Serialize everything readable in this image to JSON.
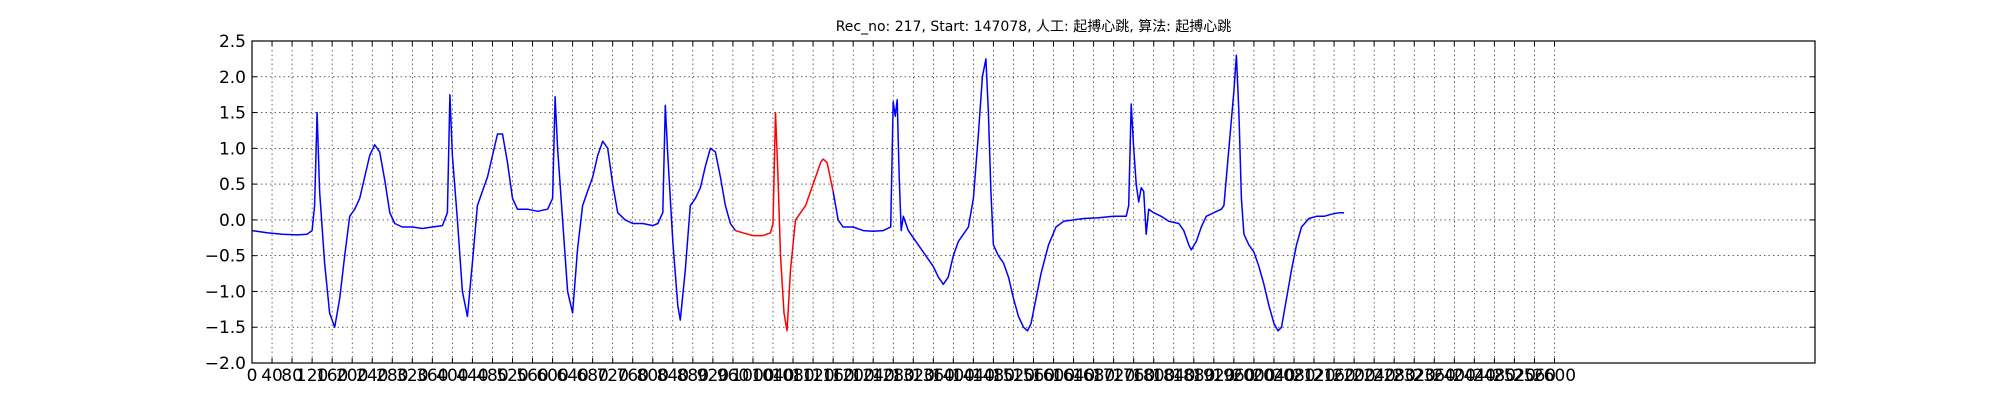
{
  "chart_data": {
    "type": "line",
    "title": "Rec_no: 217, Start: 147078, 人工: 起搏心跳, 算法: 起搏心跳",
    "xlabel": "",
    "ylabel": "",
    "xlim": [
      0,
      3120
    ],
    "ylim": [
      -2.0,
      2.5
    ],
    "grid": true,
    "yticks": [
      -2.0,
      -1.5,
      -1.0,
      -0.5,
      0.0,
      0.5,
      1.0,
      1.5,
      2.0,
      2.5
    ],
    "ytick_labels": [
      "−2.0",
      "−1.5",
      "−1.0",
      "−0.5",
      "0.0",
      "0.5",
      "1.0",
      "1.5",
      "2.0",
      "2.5"
    ],
    "xticks": [
      0,
      40,
      80,
      120,
      160,
      200,
      240,
      280,
      320,
      360,
      400,
      440,
      480,
      520,
      560,
      600,
      640,
      680,
      720,
      760,
      800,
      840,
      880,
      920,
      960,
      1000,
      1040,
      1080,
      1120,
      1160,
      1200,
      1240,
      1280,
      1320,
      1360,
      1400,
      1440,
      1480,
      1520,
      1560,
      1600,
      1640,
      1680,
      1720,
      1760,
      1800,
      1840,
      1880,
      1920,
      1960,
      2000,
      2040,
      2080,
      2120,
      2160,
      2200,
      2240,
      2280,
      2320,
      2360,
      2400,
      2440,
      2480,
      2520,
      2560,
      2600
    ],
    "xtick_labels": [
      "0",
      "40",
      "80",
      "120",
      "160",
      "200",
      "240",
      "280",
      "320",
      "360",
      "400",
      "440",
      "480",
      "520",
      "560",
      "600",
      "640",
      "680",
      "720",
      "760",
      "800",
      "840",
      "880",
      "920",
      "960",
      "1000",
      "1040",
      "1080",
      "1120",
      "1160",
      "1200",
      "1240",
      "1280",
      "1320",
      "1360",
      "1400",
      "1440",
      "1480",
      "1520",
      "1560",
      "1600",
      "1640",
      "1680",
      "1720",
      "1760",
      "1800",
      "1840",
      "1880",
      "1920",
      "1960",
      "2000",
      "2040",
      "2080",
      "2120",
      "2160",
      "2200",
      "2240",
      "2280",
      "2320",
      "2360",
      "2400",
      "2440",
      "2480",
      "2520",
      "2560",
      "2600"
    ],
    "series": [
      {
        "color": "#0000ff",
        "points": [
          [
            0,
            -0.15
          ],
          [
            30,
            -0.18
          ],
          [
            60,
            -0.2
          ],
          [
            90,
            -0.21
          ],
          [
            110,
            -0.2
          ],
          [
            120,
            -0.15
          ],
          [
            125,
            0.2
          ],
          [
            130,
            1.5
          ],
          [
            135,
            0.4
          ],
          [
            145,
            -0.6
          ],
          [
            155,
            -1.3
          ],
          [
            165,
            -1.5
          ],
          [
            175,
            -1.1
          ],
          [
            185,
            -0.5
          ],
          [
            195,
            0.05
          ],
          [
            205,
            0.15
          ],
          [
            215,
            0.3
          ],
          [
            225,
            0.6
          ],
          [
            235,
            0.9
          ],
          [
            245,
            1.05
          ],
          [
            255,
            0.95
          ],
          [
            265,
            0.55
          ],
          [
            275,
            0.1
          ],
          [
            285,
            -0.05
          ],
          [
            300,
            -0.1
          ],
          [
            320,
            -0.1
          ],
          [
            340,
            -0.12
          ],
          [
            360,
            -0.1
          ],
          [
            380,
            -0.08
          ],
          [
            390,
            0.1
          ],
          [
            395,
            1.75
          ],
          [
            400,
            0.9
          ],
          [
            410,
            0.0
          ],
          [
            420,
            -1.0
          ],
          [
            430,
            -1.35
          ],
          [
            440,
            -0.6
          ],
          [
            450,
            0.2
          ],
          [
            460,
            0.4
          ],
          [
            470,
            0.6
          ],
          [
            480,
            0.9
          ],
          [
            490,
            1.2
          ],
          [
            500,
            1.2
          ],
          [
            510,
            0.8
          ],
          [
            520,
            0.3
          ],
          [
            530,
            0.15
          ],
          [
            550,
            0.15
          ],
          [
            570,
            0.12
          ],
          [
            590,
            0.15
          ],
          [
            600,
            0.3
          ],
          [
            605,
            1.72
          ],
          [
            610,
            1.0
          ],
          [
            620,
            0.0
          ],
          [
            630,
            -1.0
          ],
          [
            640,
            -1.3
          ],
          [
            650,
            -0.4
          ],
          [
            660,
            0.2
          ],
          [
            670,
            0.4
          ],
          [
            680,
            0.6
          ],
          [
            690,
            0.9
          ],
          [
            700,
            1.1
          ],
          [
            710,
            1.0
          ],
          [
            720,
            0.5
          ],
          [
            730,
            0.1
          ],
          [
            745,
            0.0
          ],
          [
            760,
            -0.05
          ],
          [
            780,
            -0.05
          ],
          [
            800,
            -0.08
          ],
          [
            810,
            -0.05
          ],
          [
            820,
            0.1
          ],
          [
            825,
            1.6
          ],
          [
            830,
            0.9
          ],
          [
            840,
            -0.3
          ],
          [
            850,
            -1.2
          ],
          [
            855,
            -1.4
          ],
          [
            865,
            -0.7
          ],
          [
            875,
            0.2
          ],
          [
            885,
            0.3
          ],
          [
            895,
            0.45
          ],
          [
            905,
            0.75
          ],
          [
            915,
            1.0
          ],
          [
            925,
            0.95
          ],
          [
            935,
            0.6
          ],
          [
            945,
            0.2
          ],
          [
            955,
            -0.05
          ],
          [
            965,
            -0.15
          ]
        ]
      },
      {
        "color": "#ff0000",
        "points": [
          [
            965,
            -0.15
          ],
          [
            980,
            -0.18
          ],
          [
            1000,
            -0.22
          ],
          [
            1020,
            -0.22
          ],
          [
            1035,
            -0.18
          ],
          [
            1040,
            -0.05
          ],
          [
            1045,
            1.5
          ],
          [
            1050,
            0.6
          ],
          [
            1055,
            -0.5
          ],
          [
            1062,
            -1.3
          ],
          [
            1068,
            -1.55
          ],
          [
            1075,
            -0.7
          ],
          [
            1085,
            0.0
          ],
          [
            1095,
            0.1
          ],
          [
            1105,
            0.2
          ],
          [
            1115,
            0.4
          ],
          [
            1125,
            0.6
          ],
          [
            1135,
            0.8
          ],
          [
            1140,
            0.85
          ],
          [
            1148,
            0.8
          ],
          [
            1160,
            0.4
          ]
        ]
      },
      {
        "color": "#0000ff",
        "points": [
          [
            1160,
            0.4
          ],
          [
            1170,
            0.0
          ],
          [
            1180,
            -0.1
          ],
          [
            1200,
            -0.1
          ],
          [
            1220,
            -0.15
          ],
          [
            1240,
            -0.16
          ],
          [
            1260,
            -0.15
          ],
          [
            1275,
            -0.1
          ],
          [
            1280,
            1.65
          ],
          [
            1284,
            1.45
          ],
          [
            1288,
            1.68
          ],
          [
            1292,
            0.6
          ],
          [
            1296,
            -0.15
          ],
          [
            1300,
            0.05
          ],
          [
            1310,
            -0.15
          ],
          [
            1320,
            -0.25
          ],
          [
            1340,
            -0.45
          ],
          [
            1360,
            -0.65
          ],
          [
            1370,
            -0.8
          ],
          [
            1380,
            -0.9
          ],
          [
            1390,
            -0.8
          ],
          [
            1400,
            -0.5
          ],
          [
            1410,
            -0.3
          ],
          [
            1420,
            -0.2
          ],
          [
            1430,
            -0.1
          ],
          [
            1440,
            0.3
          ],
          [
            1450,
            1.2
          ],
          [
            1458,
            2.0
          ],
          [
            1465,
            2.25
          ],
          [
            1470,
            1.5
          ],
          [
            1475,
            0.4
          ],
          [
            1480,
            -0.35
          ],
          [
            1490,
            -0.5
          ],
          [
            1500,
            -0.6
          ],
          [
            1510,
            -0.8
          ],
          [
            1520,
            -1.1
          ],
          [
            1530,
            -1.35
          ],
          [
            1540,
            -1.5
          ],
          [
            1548,
            -1.55
          ],
          [
            1555,
            -1.45
          ],
          [
            1565,
            -1.1
          ],
          [
            1575,
            -0.75
          ],
          [
            1590,
            -0.35
          ],
          [
            1605,
            -0.1
          ],
          [
            1620,
            -0.02
          ],
          [
            1640,
            0.0
          ],
          [
            1660,
            0.02
          ],
          [
            1690,
            0.03
          ],
          [
            1720,
            0.05
          ],
          [
            1745,
            0.05
          ],
          [
            1750,
            0.2
          ],
          [
            1755,
            1.62
          ],
          [
            1760,
            1.0
          ],
          [
            1765,
            0.5
          ],
          [
            1770,
            0.25
          ],
          [
            1775,
            0.45
          ],
          [
            1780,
            0.4
          ],
          [
            1785,
            -0.2
          ],
          [
            1790,
            0.15
          ],
          [
            1800,
            0.1
          ],
          [
            1815,
            0.05
          ],
          [
            1830,
            -0.02
          ],
          [
            1850,
            -0.05
          ],
          [
            1860,
            -0.15
          ],
          [
            1870,
            -0.35
          ],
          [
            1875,
            -0.42
          ],
          [
            1885,
            -0.3
          ],
          [
            1895,
            -0.1
          ],
          [
            1905,
            0.05
          ],
          [
            1920,
            0.1
          ],
          [
            1935,
            0.15
          ],
          [
            1940,
            0.2
          ],
          [
            1950,
            1.0
          ],
          [
            1960,
            1.8
          ],
          [
            1965,
            2.3
          ],
          [
            1970,
            1.5
          ],
          [
            1975,
            0.3
          ],
          [
            1980,
            -0.2
          ],
          [
            1990,
            -0.35
          ],
          [
            2000,
            -0.45
          ],
          [
            2010,
            -0.65
          ],
          [
            2020,
            -0.9
          ],
          [
            2030,
            -1.2
          ],
          [
            2040,
            -1.45
          ],
          [
            2048,
            -1.55
          ],
          [
            2055,
            -1.5
          ],
          [
            2065,
            -1.1
          ],
          [
            2075,
            -0.7
          ],
          [
            2085,
            -0.35
          ],
          [
            2095,
            -0.1
          ],
          [
            2110,
            0.02
          ],
          [
            2125,
            0.05
          ],
          [
            2140,
            0.05
          ],
          [
            2155,
            0.08
          ],
          [
            2170,
            0.1
          ],
          [
            2180,
            0.1
          ]
        ]
      }
    ]
  }
}
